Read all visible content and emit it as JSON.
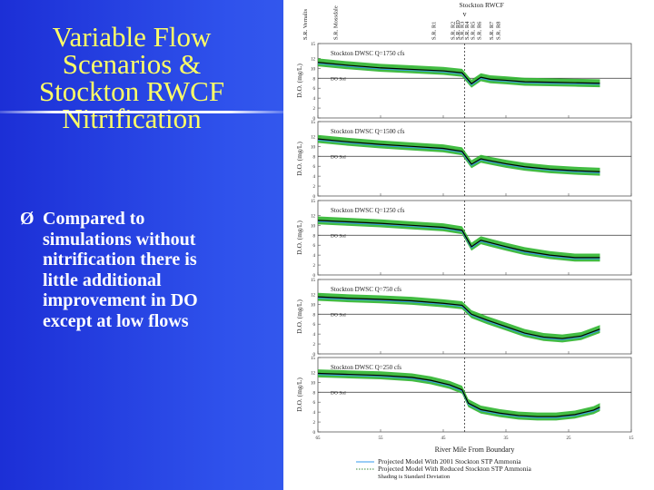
{
  "slide": {
    "title_lines": [
      "Variable Flow",
      "Scenarios &",
      "Stockton RWCF",
      "Nitrification"
    ],
    "bullet_marker": "Ø",
    "bullet_lines": [
      "Compared to",
      "simulations without",
      "nitrification there is",
      "little additional",
      "improvement in DO",
      "except at low flows"
    ]
  },
  "colors": {
    "background": "#2f52ec",
    "title": "#ffff66",
    "bullet_text": "#ffffff",
    "model_line": "#000000",
    "shading": "#2fb52f",
    "projected_2001": "#3399ee",
    "do_std_line": "#333333"
  },
  "chart_data": {
    "type": "line",
    "top_labels": [
      "S.R. Vernalis",
      "S.R. Mossdale",
      "S.R. R1",
      "S.R. R2",
      "S.R. RD",
      "S.R. R3",
      "S.R. R4",
      "S.R. R5",
      "S.R. R6",
      "S.R. R7",
      "S.R. R8"
    ],
    "top_label_positions": [
      67,
      62.2,
      46.5,
      43.5,
      42.7,
      42,
      41.2,
      40.3,
      39.3,
      37.3,
      36.2
    ],
    "stockton_label": "Stockton RWCF",
    "stockton_marker": "v",
    "stockton_position": 41.6,
    "vertical_line_x": 41.6,
    "xlim": [
      65,
      15
    ],
    "xticks": [
      65,
      55,
      45,
      35,
      25,
      15
    ],
    "xtick_labels": [
      "65",
      "55",
      "45",
      "35",
      "25",
      "15"
    ],
    "xlabel": "River Mile From Boundary",
    "ylabel": "D.O. (mg/L)",
    "ylim": [
      0,
      15
    ],
    "yticks": [
      0,
      2,
      4,
      6,
      8,
      10,
      12,
      15
    ],
    "ytick_labels": [
      "0",
      "2",
      "4",
      "6",
      "8",
      "10",
      "12",
      "15"
    ],
    "do_std_label": "DO Std",
    "do_std_value": 8,
    "panels": [
      {
        "name": "Stockton DWSC Q=1750 cfs",
        "x": [
          65,
          60,
          55,
          50,
          45,
          42,
          40.5,
          39,
          37.5,
          35,
          32,
          28,
          24,
          20
        ],
        "y": [
          11.2,
          10.6,
          10.1,
          9.8,
          9.5,
          9.1,
          6.9,
          8.2,
          7.8,
          7.6,
          7.3,
          7.2,
          7.1,
          7.0
        ],
        "sd": 0.8
      },
      {
        "name": "Stockton DWSC Q=1500 cfs",
        "x": [
          65,
          60,
          55,
          50,
          45,
          42,
          40.5,
          39,
          37.5,
          35,
          32,
          28,
          24,
          20
        ],
        "y": [
          11.5,
          10.9,
          10.4,
          10.0,
          9.6,
          9.0,
          6.4,
          7.5,
          7.1,
          6.5,
          5.9,
          5.4,
          5.1,
          4.9
        ],
        "sd": 0.8
      },
      {
        "name": "Stockton DWSC Q=1250 cfs",
        "x": [
          65,
          60,
          55,
          50,
          45,
          42,
          40.5,
          39,
          37.5,
          35,
          32,
          28,
          24,
          20
        ],
        "y": [
          11.0,
          10.7,
          10.4,
          10.0,
          9.6,
          9.0,
          5.7,
          7.0,
          6.5,
          5.7,
          4.8,
          4.0,
          3.5,
          3.5
        ],
        "sd": 0.8
      },
      {
        "name": "Stockton DWSC Q=750 cfs",
        "x": [
          65,
          60,
          55,
          50,
          45,
          42,
          40.5,
          38,
          35,
          32,
          29,
          26,
          23,
          20
        ],
        "y": [
          11.5,
          11.2,
          11.0,
          10.7,
          10.2,
          9.8,
          8.0,
          6.8,
          5.5,
          4.2,
          3.4,
          3.1,
          3.6,
          5.0
        ],
        "sd": 0.8
      },
      {
        "name": "Stockton DWSC Q=250 cfs",
        "x": [
          65,
          60,
          55,
          50,
          47,
          44,
          42,
          41,
          39,
          36,
          33,
          30,
          27,
          24,
          21,
          20
        ],
        "y": [
          11.8,
          11.6,
          11.4,
          11.0,
          10.4,
          9.5,
          8.5,
          5.8,
          4.5,
          3.8,
          3.3,
          3.1,
          3.1,
          3.5,
          4.4,
          5.0
        ],
        "sd": 0.8
      }
    ],
    "legend": [
      "Projected  Model With 2001 Stockton STP Ammonia",
      "Projected  Model With Reduced Stockton STP Ammonia",
      "Shading is Standard Deviation"
    ]
  }
}
